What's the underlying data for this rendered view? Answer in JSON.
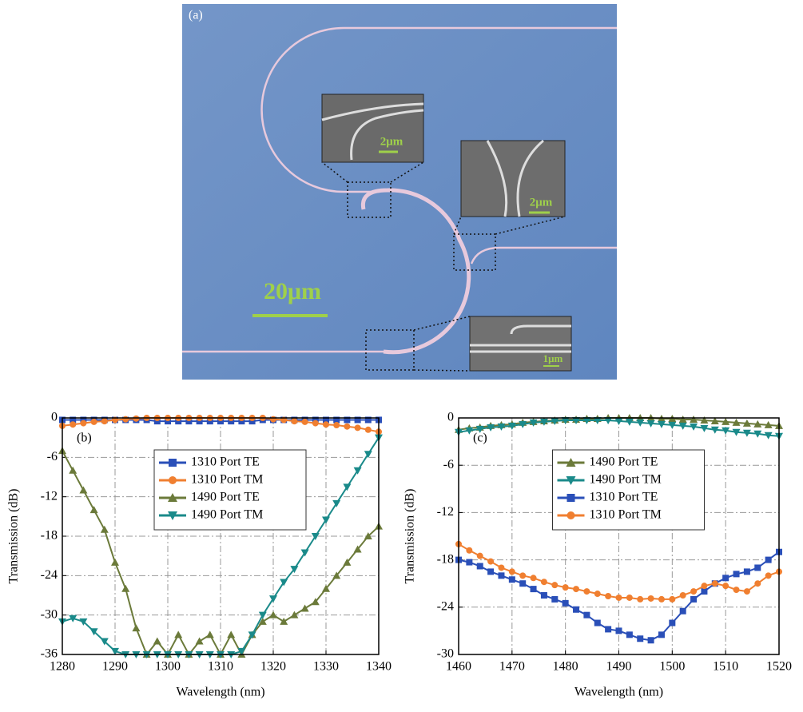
{
  "image_panel": {
    "label": "(a)",
    "scale_bar": "20μm",
    "insets": [
      {
        "scale_bar": "2μm"
      },
      {
        "scale_bar": "2μm"
      },
      {
        "scale_bar": "1μm"
      }
    ]
  },
  "chart_data": [
    {
      "type": "line",
      "panel_label": "(b)",
      "x_label": "Wavelength (nm)",
      "y_label": "Transmission (dB)",
      "x": [
        1280,
        1282,
        1284,
        1286,
        1288,
        1290,
        1292,
        1294,
        1296,
        1298,
        1300,
        1302,
        1304,
        1306,
        1308,
        1310,
        1312,
        1314,
        1316,
        1318,
        1320,
        1322,
        1324,
        1326,
        1328,
        1330,
        1332,
        1334,
        1336,
        1338,
        1340
      ],
      "xlim": [
        1280,
        1340
      ],
      "xticks": [
        1280,
        1290,
        1300,
        1310,
        1320,
        1330,
        1340
      ],
      "ylim": [
        -36,
        0
      ],
      "yticks": [
        -36,
        -30,
        -24,
        -18,
        -12,
        -6,
        0
      ],
      "grid": true,
      "legend": "upper-center",
      "series": [
        {
          "name": "1310 Port TE",
          "color": "#2a4fb8",
          "marker": "square",
          "values": [
            -0.3,
            -0.3,
            -0.3,
            -0.3,
            -0.3,
            -0.3,
            -0.3,
            -0.3,
            -0.3,
            -0.5,
            -0.5,
            -0.5,
            -0.5,
            -0.5,
            -0.5,
            -0.5,
            -0.5,
            -0.5,
            -0.5,
            -0.3,
            -0.3,
            -0.3,
            -0.3,
            -0.3,
            -0.3,
            -0.3,
            -0.3,
            -0.3,
            -0.3,
            -0.3,
            -0.3
          ]
        },
        {
          "name": "1310 Port TM",
          "color": "#f07f30",
          "marker": "circle",
          "values": [
            -1.2,
            -1.0,
            -0.8,
            -0.6,
            -0.5,
            -0.3,
            -0.2,
            -0.1,
            0,
            0,
            0,
            0,
            0,
            0,
            0,
            0,
            0,
            0,
            0,
            0,
            -0.2,
            -0.3,
            -0.5,
            -0.6,
            -0.8,
            -1.0,
            -1.1,
            -1.3,
            -1.5,
            -1.8,
            -2.1
          ]
        },
        {
          "name": "1490 Port TE",
          "color": "#6b7a3a",
          "marker": "triangle-up",
          "values": [
            -5,
            -8,
            -11,
            -14,
            -17,
            -22,
            -26,
            -32,
            -36,
            -34,
            -36,
            -33,
            -36,
            -34,
            -33,
            -36,
            -33,
            -36,
            -33,
            -31,
            -30,
            -31,
            -30,
            -29,
            -28,
            -26,
            -24,
            -22,
            -20,
            -18,
            -16.5
          ]
        },
        {
          "name": "1490 Port TM",
          "color": "#1a8a8a",
          "marker": "triangle-down",
          "values": [
            -31,
            -30.5,
            -31,
            -32.5,
            -34,
            -35.5,
            -36,
            -36,
            -36,
            -36,
            -36,
            -36,
            -36,
            -36,
            -36,
            -36,
            -36,
            -35.5,
            -33,
            -30,
            -27.5,
            -25,
            -23,
            -20.5,
            -18,
            -15.5,
            -13,
            -10.5,
            -8,
            -5.5,
            -3
          ]
        }
      ]
    },
    {
      "type": "line",
      "panel_label": "(c)",
      "x_label": "Wavelength (nm)",
      "y_label": "Transmission (dB)",
      "x": [
        1460,
        1462,
        1464,
        1466,
        1468,
        1470,
        1472,
        1474,
        1476,
        1478,
        1480,
        1482,
        1484,
        1486,
        1488,
        1490,
        1492,
        1494,
        1496,
        1498,
        1500,
        1502,
        1504,
        1506,
        1508,
        1510,
        1512,
        1514,
        1516,
        1518,
        1520
      ],
      "xlim": [
        1460,
        1520
      ],
      "xticks": [
        1460,
        1470,
        1480,
        1490,
        1500,
        1510,
        1520
      ],
      "ylim": [
        -30,
        0
      ],
      "yticks": [
        -30,
        -24,
        -18,
        -12,
        -6,
        0
      ],
      "grid": true,
      "legend": "upper-center",
      "series": [
        {
          "name": "1490 Port TE",
          "color": "#6b7a3a",
          "marker": "triangle-up",
          "values": [
            -1.5,
            -1.3,
            -1.2,
            -1.0,
            -0.9,
            -0.8,
            -0.6,
            -0.5,
            -0.4,
            -0.3,
            -0.2,
            -0.2,
            -0.1,
            -0.1,
            0,
            0,
            0,
            0,
            0,
            -0.1,
            -0.1,
            -0.2,
            -0.2,
            -0.3,
            -0.4,
            -0.5,
            -0.6,
            -0.7,
            -0.8,
            -0.9,
            -1.0
          ]
        },
        {
          "name": "1490 Port TM",
          "color": "#1a8a8a",
          "marker": "triangle-down",
          "values": [
            -1.8,
            -1.6,
            -1.4,
            -1.2,
            -1.1,
            -1.0,
            -0.8,
            -0.6,
            -0.5,
            -0.4,
            -0.3,
            -0.3,
            -0.3,
            -0.3,
            -0.3,
            -0.4,
            -0.5,
            -0.6,
            -0.7,
            -0.8,
            -0.9,
            -1.0,
            -1.1,
            -1.3,
            -1.5,
            -1.6,
            -1.8,
            -1.9,
            -2.0,
            -2.2,
            -2.3
          ]
        },
        {
          "name": "1310 Port TE",
          "color": "#2a4fb8",
          "marker": "square",
          "values": [
            -18,
            -18.3,
            -18.8,
            -19.5,
            -20,
            -20.5,
            -21,
            -21.7,
            -22.5,
            -23,
            -23.5,
            -24.3,
            -25,
            -26,
            -26.8,
            -27,
            -27.5,
            -28,
            -28.2,
            -27.5,
            -26,
            -24.5,
            -23,
            -22,
            -21,
            -20.3,
            -19.8,
            -19.5,
            -19,
            -18,
            -17
          ]
        },
        {
          "name": "1310 Port TM",
          "color": "#f07f30",
          "marker": "circle",
          "values": [
            -16,
            -16.8,
            -17.5,
            -18.2,
            -19,
            -19.5,
            -20,
            -20.3,
            -20.8,
            -21.2,
            -21.5,
            -21.7,
            -22,
            -22.3,
            -22.6,
            -22.8,
            -22.8,
            -23,
            -22.9,
            -23,
            -23,
            -22.5,
            -22,
            -21.3,
            -21,
            -21.3,
            -21.8,
            -22,
            -21,
            -20,
            -19.5
          ]
        }
      ]
    }
  ]
}
